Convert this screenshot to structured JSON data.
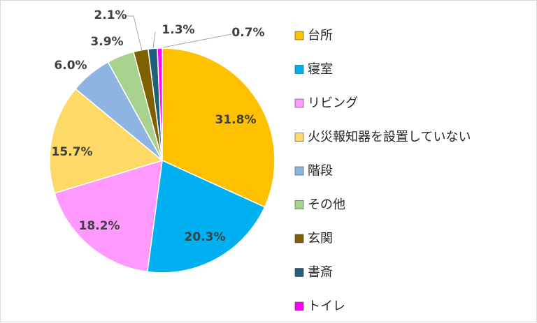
{
  "chart_data": {
    "type": "pie",
    "title": "",
    "legend_position": "right",
    "slices": [
      {
        "label": "台所",
        "value": 31.8,
        "display": "31.8%",
        "color": "#ffc000"
      },
      {
        "label": "寝室",
        "value": 20.3,
        "display": "20.3%",
        "color": "#00b0f0"
      },
      {
        "label": "リビング",
        "value": 18.2,
        "display": "18.2%",
        "color": "#ff99ff"
      },
      {
        "label": "火災報知器を設置していない",
        "value": 15.7,
        "display": "15.7%",
        "color": "#ffd966"
      },
      {
        "label": "階段",
        "value": 6.0,
        "display": "6.0%",
        "color": "#8db4e2"
      },
      {
        "label": "その他",
        "value": 3.9,
        "display": "3.9%",
        "color": "#a9d18e"
      },
      {
        "label": "玄関",
        "value": 2.1,
        "display": "2.1%",
        "color": "#7f6000"
      },
      {
        "label": "書斎",
        "value": 1.3,
        "display": "1.3%",
        "color": "#1f5f7a"
      },
      {
        "label": "トイレ",
        "value": 0.7,
        "display": "0.7%",
        "color": "#ff00ff"
      }
    ]
  }
}
